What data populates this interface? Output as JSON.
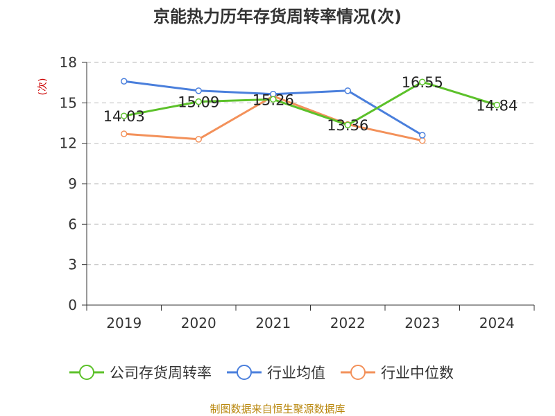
{
  "chart_data": {
    "type": "line",
    "title": "京能热力历年存货周转率情况(次)",
    "xlabel": "",
    "ylabel": "(次)",
    "categories": [
      "2019",
      "2020",
      "2021",
      "2022",
      "2023",
      "2024"
    ],
    "ylim": [
      0,
      18
    ],
    "yticks": [
      0,
      3,
      6,
      9,
      12,
      15,
      18
    ],
    "grid": "horizontal-dashed",
    "legend_position": "bottom",
    "series": [
      {
        "name": "公司存货周转率",
        "color": "#5cc12a",
        "values": [
          14.03,
          15.09,
          15.26,
          13.36,
          16.55,
          14.84
        ],
        "labels": [
          "14.03",
          "15.09",
          "15.26",
          "13.36",
          "16.55",
          "14.84"
        ]
      },
      {
        "name": "行业均值",
        "color": "#4a7fdc",
        "values": [
          16.6,
          15.9,
          15.65,
          15.9,
          12.6,
          null
        ]
      },
      {
        "name": "行业中位数",
        "color": "#f3915a",
        "values": [
          12.7,
          12.3,
          15.5,
          13.4,
          12.2,
          null
        ]
      }
    ]
  },
  "footer": {
    "source": "制图数据来自恒生聚源数据库"
  }
}
